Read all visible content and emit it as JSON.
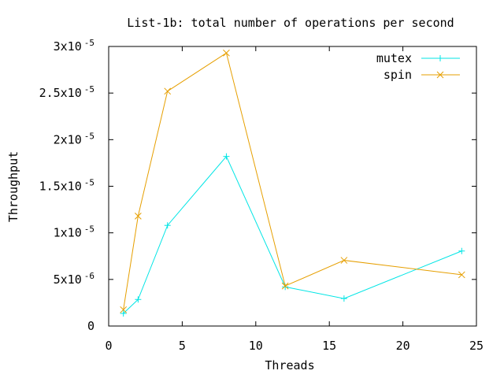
{
  "chart_data": {
    "type": "line",
    "title": "List-1b: total number of operations per second",
    "xlabel": "Threads",
    "ylabel": "Throughput",
    "xlim": [
      0,
      25
    ],
    "ylim": [
      0,
      3e-05
    ],
    "x_ticks": [
      0,
      5,
      10,
      15,
      20,
      25
    ],
    "x_tick_labels": [
      "0",
      "5",
      "10",
      "15",
      "20",
      "25"
    ],
    "y_ticks": [
      0,
      5e-06,
      1e-05,
      1.5e-05,
      2e-05,
      2.5e-05,
      3e-05
    ],
    "y_tick_labels": [
      {
        "base": "0",
        "exp": ""
      },
      {
        "base": "5x10",
        "exp": "-6"
      },
      {
        "base": "1x10",
        "exp": "-5"
      },
      {
        "base": "1.5x10",
        "exp": "-5"
      },
      {
        "base": "2x10",
        "exp": "-5"
      },
      {
        "base": "2.5x10",
        "exp": "-5"
      },
      {
        "base": "3x10",
        "exp": "-5"
      }
    ],
    "grid": false,
    "legend_position": "top-right",
    "series": [
      {
        "name": "mutex",
        "color": "#00e5e5",
        "marker": "plus",
        "x": [
          1,
          2,
          4,
          8,
          12,
          16,
          24
        ],
        "y": [
          1.35e-06,
          2.85e-06,
          1.08e-05,
          1.82e-05,
          4.2e-06,
          2.95e-06,
          8.05e-06
        ]
      },
      {
        "name": "spin",
        "color": "#e69f00",
        "marker": "cross",
        "x": [
          1,
          2,
          4,
          8,
          12,
          16,
          24
        ],
        "y": [
          1.75e-06,
          1.18e-05,
          2.52e-05,
          2.93e-05,
          4.3e-06,
          7.05e-06,
          5.5e-06
        ]
      }
    ]
  }
}
